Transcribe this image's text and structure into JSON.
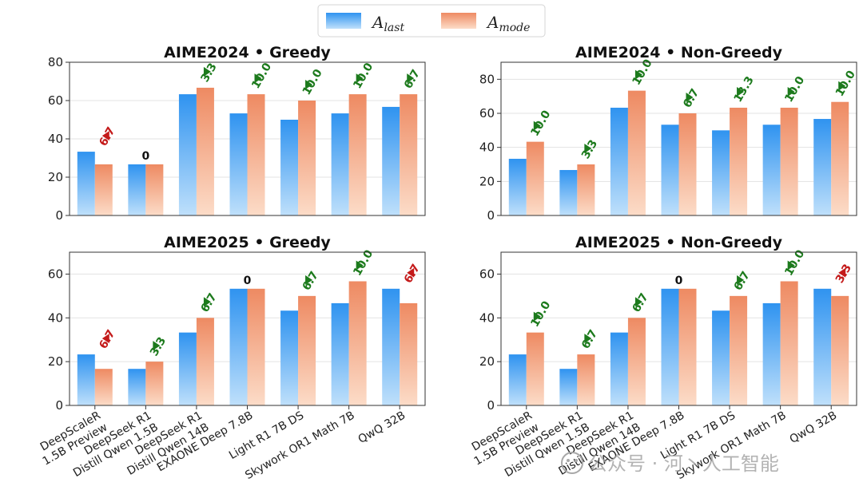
{
  "legend": {
    "entries": [
      {
        "symbol": "A",
        "subscript": "last",
        "color": "#2f93f0"
      },
      {
        "symbol": "A",
        "subscript": "mode",
        "color": "#ee8a62"
      }
    ]
  },
  "watermark": "公众号 · 河丶人工智能",
  "colors": {
    "up": "#1c7a1c",
    "down": "#c41a1a",
    "zero": "#111111"
  },
  "chart_data": [
    {
      "type": "bar",
      "title": "AIME2024 • Greedy",
      "categories": [
        "DeepScaleR\n1.5B Preview",
        "DeepSeek R1\nDistill Qwen 1.5B",
        "DeepSeek R1\nDistill Qwen 14B",
        "EXAONE Deep 7.8B",
        "Light R1 7B DS",
        "Skywork OR1 Math 7B",
        "QwQ 32B"
      ],
      "series": [
        {
          "name": "A_last",
          "values": [
            33.3,
            26.7,
            63.3,
            53.3,
            50.0,
            53.3,
            56.7
          ]
        },
        {
          "name": "A_mode",
          "values": [
            26.7,
            26.7,
            66.7,
            63.3,
            60.0,
            63.3,
            63.3
          ]
        }
      ],
      "deltas": [
        "6.7",
        "0",
        "3.3",
        "10.0",
        "10.0",
        "10.0",
        "6.7"
      ],
      "delta_dir": [
        "down",
        "none",
        "up",
        "up",
        "up",
        "up",
        "up"
      ],
      "ylim": [
        0,
        80
      ],
      "yticks": [
        0,
        20,
        40,
        60,
        80
      ]
    },
    {
      "type": "bar",
      "title": "AIME2024 • Non-Greedy",
      "categories": [
        "DeepScaleR\n1.5B Preview",
        "DeepSeek R1\nDistill Qwen 1.5B",
        "DeepSeek R1\nDistill Qwen 14B",
        "EXAONE Deep 7.8B",
        "Light R1 7B DS",
        "Skywork OR1 Math 7B",
        "QwQ 32B"
      ],
      "series": [
        {
          "name": "A_last",
          "values": [
            33.3,
            26.7,
            63.3,
            53.3,
            50.0,
            53.3,
            56.7
          ]
        },
        {
          "name": "A_mode",
          "values": [
            43.3,
            30.0,
            73.3,
            60.0,
            63.3,
            63.3,
            66.7
          ]
        }
      ],
      "deltas": [
        "10.0",
        "3.3",
        "10.0",
        "6.7",
        "13.3",
        "10.0",
        "10.0"
      ],
      "delta_dir": [
        "up",
        "up",
        "up",
        "up",
        "up",
        "up",
        "up"
      ],
      "ylim": [
        0,
        90
      ],
      "yticks": [
        0,
        20,
        40,
        60,
        80
      ]
    },
    {
      "type": "bar",
      "title": "AIME2025 • Greedy",
      "categories": [
        "DeepScaleR\n1.5B Preview",
        "DeepSeek R1\nDistill Qwen 1.5B",
        "DeepSeek R1\nDistill Qwen 14B",
        "EXAONE Deep 7.8B",
        "Light R1 7B DS",
        "Skywork OR1 Math 7B",
        "QwQ 32B"
      ],
      "series": [
        {
          "name": "A_last",
          "values": [
            23.3,
            16.7,
            33.3,
            53.3,
            43.3,
            46.7,
            53.3
          ]
        },
        {
          "name": "A_mode",
          "values": [
            16.7,
            20.0,
            40.0,
            53.3,
            50.0,
            56.7,
            46.7
          ]
        }
      ],
      "deltas": [
        "6.7",
        "3.3",
        "6.7",
        "0",
        "6.7",
        "10.0",
        "6.7"
      ],
      "delta_dir": [
        "down",
        "up",
        "up",
        "none",
        "up",
        "up",
        "down"
      ],
      "ylim": [
        0,
        70
      ],
      "yticks": [
        0,
        20,
        40,
        60
      ]
    },
    {
      "type": "bar",
      "title": "AIME2025 • Non-Greedy",
      "categories": [
        "DeepScaleR\n1.5B Preview",
        "DeepSeek R1\nDistill Qwen 1.5B",
        "DeepSeek R1\nDistill Qwen 14B",
        "EXAONE Deep 7.8B",
        "Light R1 7B DS",
        "Skywork OR1 Math 7B",
        "QwQ 32B"
      ],
      "series": [
        {
          "name": "A_last",
          "values": [
            23.3,
            16.7,
            33.3,
            53.3,
            43.3,
            46.7,
            53.3
          ]
        },
        {
          "name": "A_mode",
          "values": [
            33.3,
            23.3,
            40.0,
            53.3,
            50.0,
            56.7,
            50.0
          ]
        }
      ],
      "deltas": [
        "10.0",
        "6.7",
        "6.7",
        "0",
        "6.7",
        "10.0",
        "3.3"
      ],
      "delta_dir": [
        "up",
        "up",
        "up",
        "none",
        "up",
        "up",
        "down"
      ],
      "ylim": [
        0,
        70
      ],
      "yticks": [
        0,
        20,
        40,
        60
      ]
    }
  ]
}
